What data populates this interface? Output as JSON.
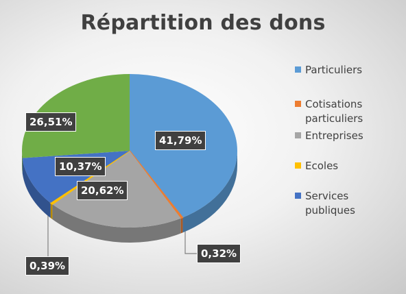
{
  "chart_data": {
    "type": "pie",
    "title": "Répartition des dons",
    "legend_position": "right",
    "slices": [
      {
        "label": "Particuliers",
        "value": 41.79,
        "display": "41,79%",
        "color": "#5b9bd5"
      },
      {
        "label": "Cotisations particuliers",
        "value": 0.32,
        "display": "0,32%",
        "color": "#ed7d31"
      },
      {
        "label": "Entreprises",
        "value": 20.62,
        "display": "20,62%",
        "color": "#a5a5a5"
      },
      {
        "label": "Ecoles",
        "value": 0.39,
        "display": "0,39%",
        "color": "#ffc000"
      },
      {
        "label": "Services publiques",
        "value": 10.37,
        "display": "10,37%",
        "color": "#4472c4"
      },
      {
        "label": "",
        "value": 26.51,
        "display": "26,51%",
        "color": "#70ad47"
      }
    ],
    "legend": [
      "Particuliers",
      "Cotisations particuliers",
      "Entreprises",
      "Ecoles",
      "Services publiques"
    ]
  }
}
